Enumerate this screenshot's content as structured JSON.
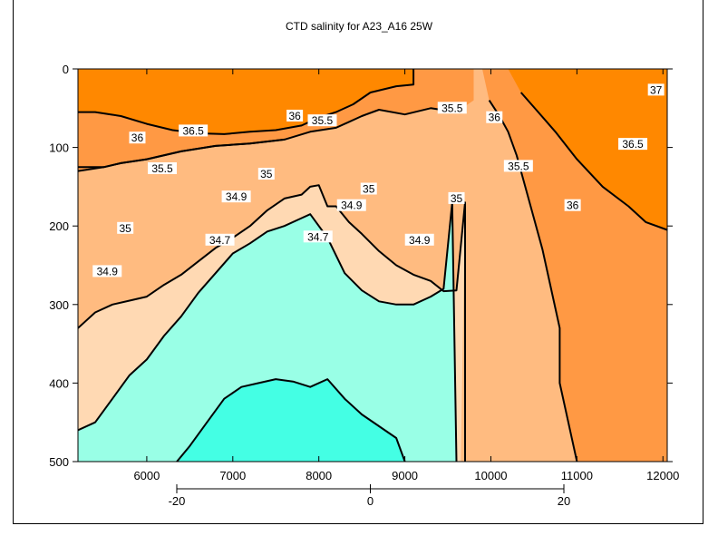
{
  "chart_data": {
    "type": "contour",
    "title": "CTD salinity for A23_A16 25W",
    "xlim": [
      5200,
      12050
    ],
    "ylim": [
      0,
      500
    ],
    "y_inverted": true,
    "x_ticks": [
      6000,
      7000,
      8000,
      9000,
      10000,
      11000,
      12000
    ],
    "y_ticks": [
      0,
      100,
      200,
      300,
      400,
      500
    ],
    "secondary_x_axis": {
      "ticks": [
        -20,
        0,
        20
      ]
    },
    "levels": [
      34.7,
      34.9,
      35,
      35.5,
      36,
      36.5,
      37
    ],
    "fill_colors": {
      "below_34.7": "#ffffff",
      "34.7_to_34.9": "#44ffe4",
      "34.9_to_35": "#99ffe6",
      "35_to_35.5": "#ffd9b3",
      "35.5_to_36": "#ffbb80",
      "36_to_36.5": "#ff9944",
      "above_36.5": "#ff8800"
    },
    "contour_labels": [
      {
        "text": "37",
        "x": 11920,
        "y": 27
      },
      {
        "text": "35.5",
        "x": 9550,
        "y": 50
      },
      {
        "text": "36",
        "x": 10040,
        "y": 62
      },
      {
        "text": "36",
        "x": 7720,
        "y": 60
      },
      {
        "text": "35.5",
        "x": 8040,
        "y": 66
      },
      {
        "text": "36.5",
        "x": 6540,
        "y": 79
      },
      {
        "text": "36",
        "x": 5890,
        "y": 88
      },
      {
        "text": "36.5",
        "x": 11650,
        "y": 96
      },
      {
        "text": "35.5",
        "x": 6180,
        "y": 127
      },
      {
        "text": "35.5",
        "x": 10320,
        "y": 124
      },
      {
        "text": "35",
        "x": 7390,
        "y": 134
      },
      {
        "text": "35",
        "x": 8580,
        "y": 153
      },
      {
        "text": "35",
        "x": 9600,
        "y": 165
      },
      {
        "text": "34.9",
        "x": 7040,
        "y": 163
      },
      {
        "text": "34.9",
        "x": 8380,
        "y": 174
      },
      {
        "text": "36",
        "x": 10950,
        "y": 174
      },
      {
        "text": "35",
        "x": 5750,
        "y": 203
      },
      {
        "text": "34.7",
        "x": 7990,
        "y": 214
      },
      {
        "text": "34.7",
        "x": 6850,
        "y": 218
      },
      {
        "text": "34.9",
        "x": 9170,
        "y": 218
      },
      {
        "text": "34.9",
        "x": 5540,
        "y": 258
      }
    ]
  }
}
